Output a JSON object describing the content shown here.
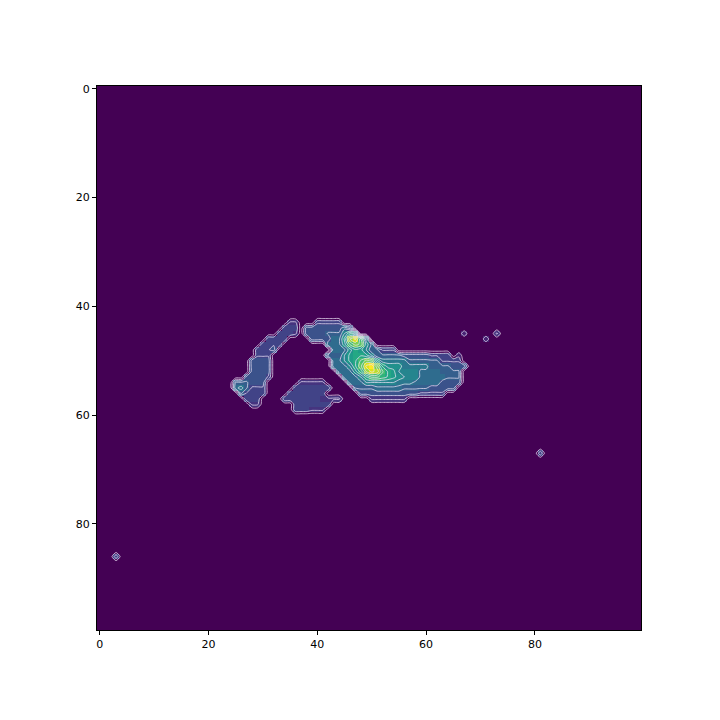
{
  "chart_data": {
    "type": "heatmap",
    "color": "Viridis",
    "grid": false,
    "xlim": [
      -0.5,
      99.5
    ],
    "ylim": [
      99.5,
      -0.5
    ],
    "xticks": [
      0,
      20,
      40,
      60,
      80
    ],
    "yticks": [
      0,
      20,
      40,
      60,
      80
    ],
    "zlim": [
      0,
      1
    ],
    "size": [
      100,
      100
    ],
    "cell_runs": [
      [
        43,
        35,
        36,
        0.15
      ],
      [
        43,
        40,
        44,
        0.2
      ],
      [
        44,
        34,
        36,
        0.2
      ],
      [
        44,
        38,
        44,
        0.25
      ],
      [
        44,
        45,
        45,
        0.35
      ],
      [
        44,
        46,
        46,
        0.25
      ],
      [
        45,
        33,
        35,
        0.2
      ],
      [
        45,
        36,
        36,
        0.15
      ],
      [
        45,
        38,
        41,
        0.25
      ],
      [
        45,
        42,
        44,
        0.3
      ],
      [
        45,
        45,
        45,
        0.45
      ],
      [
        45,
        46,
        46,
        0.6
      ],
      [
        45,
        47,
        47,
        0.5
      ],
      [
        46,
        31,
        34,
        0.2
      ],
      [
        46,
        39,
        42,
        0.25
      ],
      [
        46,
        43,
        44,
        0.35
      ],
      [
        46,
        45,
        45,
        0.55
      ],
      [
        46,
        46,
        46,
        0.85
      ],
      [
        46,
        47,
        47,
        0.95
      ],
      [
        46,
        48,
        48,
        0.7
      ],
      [
        46,
        49,
        49,
        0.4
      ],
      [
        47,
        30,
        33,
        0.2
      ],
      [
        47,
        42,
        44,
        0.35
      ],
      [
        47,
        45,
        45,
        0.5
      ],
      [
        47,
        46,
        46,
        0.7
      ],
      [
        47,
        47,
        47,
        0.8
      ],
      [
        47,
        48,
        48,
        0.75
      ],
      [
        47,
        49,
        49,
        0.5
      ],
      [
        47,
        50,
        50,
        0.35
      ],
      [
        48,
        29,
        31,
        0.2
      ],
      [
        48,
        32,
        32,
        0.25
      ],
      [
        48,
        43,
        45,
        0.35
      ],
      [
        48,
        46,
        46,
        0.5
      ],
      [
        48,
        47,
        47,
        0.6
      ],
      [
        48,
        48,
        48,
        0.55
      ],
      [
        48,
        49,
        49,
        0.45
      ],
      [
        48,
        50,
        51,
        0.3
      ],
      [
        48,
        52,
        54,
        0.2
      ],
      [
        49,
        29,
        31,
        0.2
      ],
      [
        49,
        42,
        44,
        0.3
      ],
      [
        49,
        45,
        45,
        0.45
      ],
      [
        49,
        46,
        46,
        0.55
      ],
      [
        49,
        47,
        48,
        0.6
      ],
      [
        49,
        49,
        49,
        0.55
      ],
      [
        49,
        50,
        50,
        0.45
      ],
      [
        49,
        51,
        55,
        0.3
      ],
      [
        49,
        56,
        60,
        0.25
      ],
      [
        49,
        61,
        64,
        0.2
      ],
      [
        50,
        28,
        31,
        0.25
      ],
      [
        50,
        43,
        44,
        0.35
      ],
      [
        50,
        45,
        45,
        0.45
      ],
      [
        50,
        46,
        46,
        0.55
      ],
      [
        50,
        47,
        47,
        0.6
      ],
      [
        50,
        48,
        48,
        0.7
      ],
      [
        50,
        49,
        49,
        0.8
      ],
      [
        50,
        50,
        50,
        0.75
      ],
      [
        50,
        51,
        51,
        0.55
      ],
      [
        50,
        52,
        56,
        0.4
      ],
      [
        50,
        57,
        62,
        0.3
      ],
      [
        50,
        63,
        66,
        0.2
      ],
      [
        51,
        28,
        31,
        0.25
      ],
      [
        51,
        43,
        45,
        0.35
      ],
      [
        51,
        46,
        46,
        0.45
      ],
      [
        51,
        47,
        47,
        0.6
      ],
      [
        51,
        48,
        48,
        0.75
      ],
      [
        51,
        49,
        49,
        0.95
      ],
      [
        51,
        50,
        50,
        1.0
      ],
      [
        51,
        51,
        51,
        0.8
      ],
      [
        51,
        52,
        52,
        0.6
      ],
      [
        51,
        53,
        55,
        0.5
      ],
      [
        51,
        56,
        60,
        0.4
      ],
      [
        51,
        61,
        64,
        0.3
      ],
      [
        51,
        65,
        67,
        0.25
      ],
      [
        52,
        28,
        31,
        0.25
      ],
      [
        52,
        44,
        46,
        0.35
      ],
      [
        52,
        47,
        47,
        0.5
      ],
      [
        52,
        48,
        48,
        0.65
      ],
      [
        52,
        49,
        49,
        0.85
      ],
      [
        52,
        50,
        50,
        0.95
      ],
      [
        52,
        51,
        51,
        0.9
      ],
      [
        52,
        52,
        52,
        0.7
      ],
      [
        52,
        53,
        53,
        0.6
      ],
      [
        52,
        54,
        54,
        0.55
      ],
      [
        52,
        55,
        58,
        0.45
      ],
      [
        52,
        59,
        62,
        0.35
      ],
      [
        52,
        63,
        66,
        0.3
      ],
      [
        53,
        27,
        30,
        0.25
      ],
      [
        53,
        31,
        31,
        0.2
      ],
      [
        53,
        45,
        47,
        0.35
      ],
      [
        53,
        48,
        48,
        0.45
      ],
      [
        53,
        49,
        49,
        0.6
      ],
      [
        53,
        50,
        51,
        0.7
      ],
      [
        53,
        52,
        52,
        0.65
      ],
      [
        53,
        53,
        53,
        0.6
      ],
      [
        53,
        54,
        54,
        0.55
      ],
      [
        53,
        55,
        55,
        0.5
      ],
      [
        53,
        56,
        58,
        0.45
      ],
      [
        53,
        59,
        63,
        0.35
      ],
      [
        53,
        64,
        66,
        0.3
      ],
      [
        54,
        25,
        27,
        0.3
      ],
      [
        54,
        28,
        30,
        0.25
      ],
      [
        54,
        37,
        41,
        0.15
      ],
      [
        54,
        46,
        48,
        0.35
      ],
      [
        54,
        49,
        54,
        0.45
      ],
      [
        54,
        55,
        57,
        0.4
      ],
      [
        54,
        58,
        62,
        0.35
      ],
      [
        54,
        63,
        66,
        0.25
      ],
      [
        55,
        25,
        25,
        0.35
      ],
      [
        55,
        26,
        26,
        0.4
      ],
      [
        55,
        27,
        27,
        0.3
      ],
      [
        55,
        28,
        30,
        0.2
      ],
      [
        55,
        36,
        42,
        0.2
      ],
      [
        55,
        47,
        50,
        0.3
      ],
      [
        55,
        51,
        55,
        0.35
      ],
      [
        55,
        56,
        60,
        0.3
      ],
      [
        55,
        61,
        65,
        0.25
      ],
      [
        56,
        26,
        26,
        0.3
      ],
      [
        56,
        27,
        30,
        0.2
      ],
      [
        56,
        35,
        41,
        0.2
      ],
      [
        56,
        48,
        58,
        0.25
      ],
      [
        56,
        59,
        63,
        0.2
      ],
      [
        57,
        27,
        29,
        0.2
      ],
      [
        57,
        34,
        40,
        0.2
      ],
      [
        57,
        41,
        44,
        0.15
      ],
      [
        57,
        50,
        56,
        0.15
      ],
      [
        58,
        28,
        29,
        0.15
      ],
      [
        58,
        36,
        42,
        0.2
      ],
      [
        59,
        36,
        38,
        0.2
      ],
      [
        59,
        39,
        41,
        0.15
      ],
      [
        45,
        67,
        67,
        0.1
      ],
      [
        45,
        73,
        73,
        0.15
      ],
      [
        46,
        71,
        71,
        0.1
      ],
      [
        49,
        66,
        66,
        0.1
      ],
      [
        67,
        81,
        81,
        0.2
      ],
      [
        86,
        3,
        3,
        0.2
      ]
    ]
  }
}
